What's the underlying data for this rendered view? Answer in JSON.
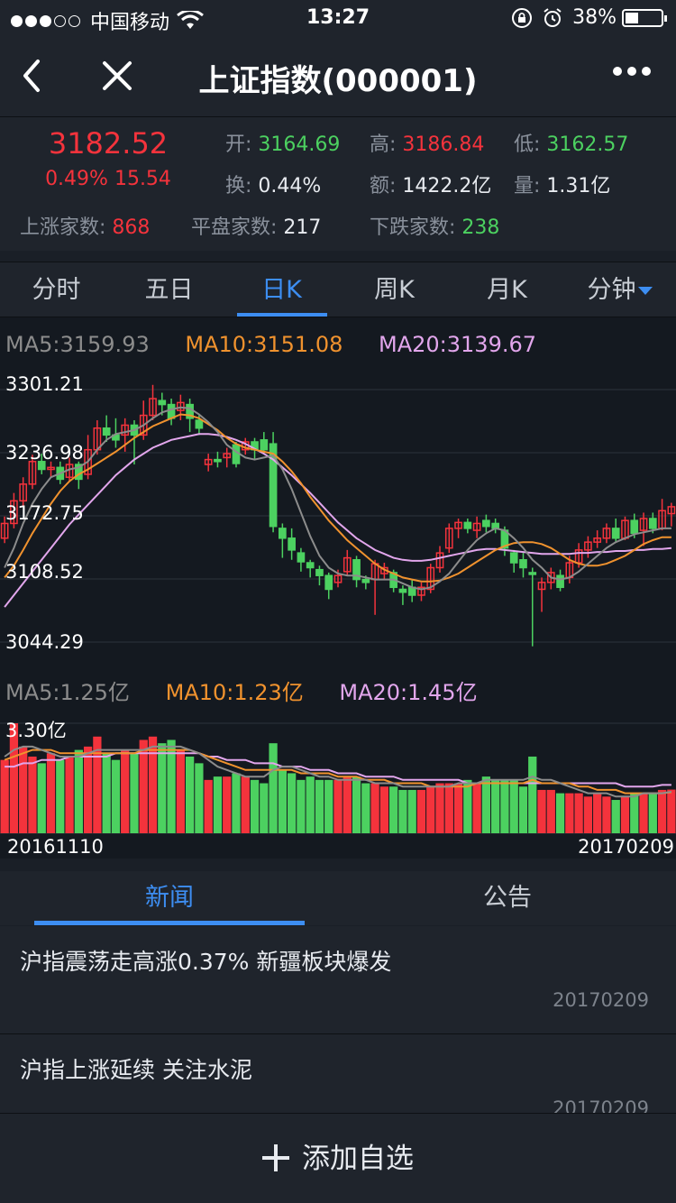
{
  "status_bar": {
    "carrier": "中国移动",
    "time": "13:27",
    "battery": "38%",
    "signal_bars": 3
  },
  "nav": {
    "title": "上证指数(000001)"
  },
  "quote": {
    "price": "3182.52",
    "change": "0.49% 15.54",
    "open_label": "开:",
    "open": "3164.69",
    "high_label": "高:",
    "high": "3186.84",
    "low_label": "低:",
    "low": "3162.57",
    "turnover_label": "换:",
    "turnover": "0.44%",
    "amount_label": "额:",
    "amount": "1422.2亿",
    "volume_label": "量:",
    "volume": "1.31亿",
    "up_label": "上涨家数:",
    "up": "868",
    "flat_label": "平盘家数:",
    "flat": "217",
    "down_label": "下跌家数:",
    "down": "238"
  },
  "tabs": [
    "分时",
    "五日",
    "日K",
    "周K",
    "月K",
    "分钟"
  ],
  "active_tab": "日K",
  "chart": {
    "ma_price": {
      "ma5": "MA5:3159.93",
      "ma10": "MA10:3151.08",
      "ma20": "MA20:3139.67"
    },
    "ma_volume": {
      "ma5": "MA5:1.25亿",
      "ma10": "MA10:1.23亿",
      "ma20": "MA20:1.45亿"
    },
    "y_labels": [
      "3301.21",
      "3236.98",
      "3172.75",
      "3108.52",
      "3044.29"
    ],
    "volume_max_label": "3.30亿",
    "start_date": "20161110",
    "end_date": "20170209",
    "colors": {
      "up": "#f4333c",
      "down": "#4cd160",
      "ma5": "#8c8c8c",
      "ma10": "#f0922e",
      "ma20": "#e2a6ec"
    }
  },
  "chart_data": {
    "type": "candlestick",
    "ylim": [
      3044.29,
      3301.21
    ],
    "volume_max": 3.3,
    "candles": [
      {
        "o": 3150,
        "c": 3165,
        "h": 3172,
        "l": 3145,
        "v": 2.2
      },
      {
        "o": 3165,
        "c": 3188,
        "h": 3196,
        "l": 3160,
        "v": 3.3
      },
      {
        "o": 3188,
        "c": 3205,
        "h": 3212,
        "l": 3182,
        "v": 2.6
      },
      {
        "o": 3205,
        "c": 3228,
        "h": 3235,
        "l": 3200,
        "v": 2.3
      },
      {
        "o": 3228,
        "c": 3220,
        "h": 3236,
        "l": 3215,
        "v": 2.1
      },
      {
        "o": 3220,
        "c": 3222,
        "h": 3228,
        "l": 3212,
        "v": 2.4
      },
      {
        "o": 3222,
        "c": 3210,
        "h": 3228,
        "l": 3205,
        "v": 2.2
      },
      {
        "o": 3212,
        "c": 3225,
        "h": 3232,
        "l": 3208,
        "v": 2.3
      },
      {
        "o": 3225,
        "c": 3210,
        "h": 3228,
        "l": 3200,
        "v": 2.5
      },
      {
        "o": 3215,
        "c": 3240,
        "h": 3255,
        "l": 3210,
        "v": 2.6
      },
      {
        "o": 3240,
        "c": 3262,
        "h": 3270,
        "l": 3235,
        "v": 2.9
      },
      {
        "o": 3262,
        "c": 3255,
        "h": 3275,
        "l": 3248,
        "v": 2.4
      },
      {
        "o": 3255,
        "c": 3250,
        "h": 3272,
        "l": 3242,
        "v": 2.2
      },
      {
        "o": 3255,
        "c": 3265,
        "h": 3272,
        "l": 3238,
        "v": 2.5
      },
      {
        "o": 3265,
        "c": 3255,
        "h": 3270,
        "l": 3225,
        "v": 2.4
      },
      {
        "o": 3255,
        "c": 3275,
        "h": 3290,
        "l": 3250,
        "v": 2.8
      },
      {
        "o": 3275,
        "c": 3292,
        "h": 3306,
        "l": 3270,
        "v": 2.9
      },
      {
        "o": 3290,
        "c": 3286,
        "h": 3298,
        "l": 3275,
        "v": 2.7
      },
      {
        "o": 3286,
        "c": 3272,
        "h": 3292,
        "l": 3265,
        "v": 2.8
      },
      {
        "o": 3280,
        "c": 3288,
        "h": 3296,
        "l": 3270,
        "v": 2.5
      },
      {
        "o": 3286,
        "c": 3272,
        "h": 3292,
        "l": 3258,
        "v": 2.3
      },
      {
        "o": 3270,
        "c": 3262,
        "h": 3275,
        "l": 3255,
        "v": 2.1
      },
      {
        "o": 3225,
        "c": 3230,
        "h": 3236,
        "l": 3218,
        "v": 1.6
      },
      {
        "o": 3230,
        "c": 3228,
        "h": 3238,
        "l": 3222,
        "v": 1.7
      },
      {
        "o": 3232,
        "c": 3236,
        "h": 3242,
        "l": 3222,
        "v": 1.7
      },
      {
        "o": 3245,
        "c": 3226,
        "h": 3248,
        "l": 3222,
        "v": 1.8
      },
      {
        "o": 3240,
        "c": 3248,
        "h": 3252,
        "l": 3235,
        "v": 1.7
      },
      {
        "o": 3248,
        "c": 3240,
        "h": 3252,
        "l": 3230,
        "v": 1.6
      },
      {
        "o": 3250,
        "c": 3240,
        "h": 3258,
        "l": 3236,
        "v": 1.5
      },
      {
        "o": 3246,
        "c": 3162,
        "h": 3258,
        "l": 3156,
        "v": 2.7
      },
      {
        "o": 3160,
        "c": 3150,
        "h": 3165,
        "l": 3130,
        "v": 1.9
      },
      {
        "o": 3150,
        "c": 3138,
        "h": 3160,
        "l": 3128,
        "v": 1.8
      },
      {
        "o": 3135,
        "c": 3126,
        "h": 3140,
        "l": 3116,
        "v": 1.6
      },
      {
        "o": 3125,
        "c": 3120,
        "h": 3128,
        "l": 3110,
        "v": 1.7
      },
      {
        "o": 3118,
        "c": 3112,
        "h": 3122,
        "l": 3102,
        "v": 1.6
      },
      {
        "o": 3112,
        "c": 3098,
        "h": 3115,
        "l": 3088,
        "v": 1.6
      },
      {
        "o": 3105,
        "c": 3112,
        "h": 3118,
        "l": 3100,
        "v": 1.6
      },
      {
        "o": 3116,
        "c": 3130,
        "h": 3138,
        "l": 3112,
        "v": 1.7
      },
      {
        "o": 3128,
        "c": 3108,
        "h": 3132,
        "l": 3100,
        "v": 1.7
      },
      {
        "o": 3108,
        "c": 3105,
        "h": 3112,
        "l": 3098,
        "v": 1.5
      },
      {
        "o": 3108,
        "c": 3124,
        "h": 3128,
        "l": 3072,
        "v": 1.5
      },
      {
        "o": 3114,
        "c": 3120,
        "h": 3125,
        "l": 3108,
        "v": 1.4
      },
      {
        "o": 3115,
        "c": 3100,
        "h": 3118,
        "l": 3095,
        "v": 1.4
      },
      {
        "o": 3098,
        "c": 3095,
        "h": 3102,
        "l": 3082,
        "v": 1.3
      },
      {
        "o": 3100,
        "c": 3092,
        "h": 3108,
        "l": 3085,
        "v": 1.3
      },
      {
        "o": 3092,
        "c": 3100,
        "h": 3105,
        "l": 3086,
        "v": 1.3
      },
      {
        "o": 3098,
        "c": 3120,
        "h": 3124,
        "l": 3094,
        "v": 1.4
      },
      {
        "o": 3120,
        "c": 3135,
        "h": 3142,
        "l": 3115,
        "v": 1.5
      },
      {
        "o": 3140,
        "c": 3160,
        "h": 3165,
        "l": 3135,
        "v": 1.5
      },
      {
        "o": 3160,
        "c": 3166,
        "h": 3170,
        "l": 3150,
        "v": 1.5
      },
      {
        "o": 3166,
        "c": 3160,
        "h": 3170,
        "l": 3155,
        "v": 1.6
      },
      {
        "o": 3158,
        "c": 3165,
        "h": 3172,
        "l": 3150,
        "v": 1.5
      },
      {
        "o": 3168,
        "c": 3162,
        "h": 3174,
        "l": 3156,
        "v": 1.7
      },
      {
        "o": 3165,
        "c": 3160,
        "h": 3170,
        "l": 3155,
        "v": 1.6
      },
      {
        "o": 3158,
        "c": 3140,
        "h": 3162,
        "l": 3132,
        "v": 1.6
      },
      {
        "o": 3135,
        "c": 3125,
        "h": 3138,
        "l": 3115,
        "v": 1.6
      },
      {
        "o": 3128,
        "c": 3120,
        "h": 3135,
        "l": 3110,
        "v": 1.4
      },
      {
        "o": 3115,
        "c": 3114,
        "h": 3120,
        "l": 3040,
        "v": 2.3
      },
      {
        "o": 3098,
        "c": 3105,
        "h": 3110,
        "l": 3075,
        "v": 1.3
      },
      {
        "o": 3105,
        "c": 3115,
        "h": 3120,
        "l": 3098,
        "v": 1.3
      },
      {
        "o": 3112,
        "c": 3100,
        "h": 3118,
        "l": 3096,
        "v": 1.2
      },
      {
        "o": 3110,
        "c": 3125,
        "h": 3132,
        "l": 3104,
        "v": 1.2
      },
      {
        "o": 3125,
        "c": 3138,
        "h": 3145,
        "l": 3120,
        "v": 1.2
      },
      {
        "o": 3138,
        "c": 3146,
        "h": 3152,
        "l": 3130,
        "v": 1.1
      },
      {
        "o": 3146,
        "c": 3150,
        "h": 3158,
        "l": 3140,
        "v": 1.2
      },
      {
        "o": 3150,
        "c": 3160,
        "h": 3165,
        "l": 3145,
        "v": 1.1
      },
      {
        "o": 3160,
        "c": 3150,
        "h": 3170,
        "l": 3146,
        "v": 1.0
      },
      {
        "o": 3150,
        "c": 3168,
        "h": 3172,
        "l": 3148,
        "v": 1.1
      },
      {
        "o": 3168,
        "c": 3155,
        "h": 3175,
        "l": 3150,
        "v": 1.2
      },
      {
        "o": 3158,
        "c": 3170,
        "h": 3176,
        "l": 3142,
        "v": 1.2
      },
      {
        "o": 3170,
        "c": 3160,
        "h": 3176,
        "l": 3155,
        "v": 1.2
      },
      {
        "o": 3160,
        "c": 3178,
        "h": 3190,
        "l": 3158,
        "v": 1.3
      },
      {
        "o": 3175,
        "c": 3182,
        "h": 3186,
        "l": 3162,
        "v": 1.31
      }
    ],
    "ma5": [
      3120,
      3140,
      3165,
      3185,
      3200,
      3212,
      3216,
      3220,
      3222,
      3228,
      3240,
      3250,
      3256,
      3258,
      3260,
      3265,
      3272,
      3278,
      3281,
      3283,
      3282,
      3276,
      3268,
      3258,
      3245,
      3238,
      3232,
      3230,
      3232,
      3234,
      3220,
      3200,
      3176,
      3152,
      3132,
      3120,
      3114,
      3112,
      3112,
      3110,
      3108,
      3108,
      3108,
      3104,
      3100,
      3098,
      3100,
      3106,
      3114,
      3126,
      3138,
      3148,
      3155,
      3160,
      3158,
      3150,
      3140,
      3128,
      3120,
      3110,
      3108,
      3110,
      3116,
      3124,
      3132,
      3140,
      3146,
      3150,
      3154,
      3156,
      3158,
      3160,
      3160
    ],
    "ma10": [
      3110,
      3122,
      3138,
      3155,
      3170,
      3185,
      3198,
      3208,
      3215,
      3220,
      3226,
      3232,
      3238,
      3245,
      3252,
      3258,
      3264,
      3268,
      3272,
      3276,
      3275,
      3272,
      3266,
      3260,
      3252,
      3246,
      3242,
      3240,
      3238,
      3236,
      3228,
      3218,
      3206,
      3192,
      3180,
      3168,
      3158,
      3148,
      3140,
      3132,
      3124,
      3118,
      3114,
      3110,
      3108,
      3106,
      3106,
      3107,
      3110,
      3114,
      3120,
      3126,
      3132,
      3138,
      3142,
      3145,
      3146,
      3146,
      3144,
      3140,
      3134,
      3128,
      3124,
      3122,
      3122,
      3124,
      3128,
      3132,
      3138,
      3144,
      3148,
      3151,
      3151
    ],
    "ma20": [
      3080,
      3092,
      3104,
      3116,
      3128,
      3140,
      3152,
      3164,
      3174,
      3184,
      3194,
      3204,
      3214,
      3222,
      3230,
      3236,
      3242,
      3246,
      3250,
      3252,
      3254,
      3256,
      3256,
      3255,
      3253,
      3250,
      3246,
      3241,
      3236,
      3230,
      3222,
      3214,
      3205,
      3196,
      3186,
      3176,
      3166,
      3158,
      3150,
      3144,
      3138,
      3134,
      3130,
      3128,
      3127,
      3127,
      3128,
      3130,
      3132,
      3134,
      3136,
      3138,
      3139,
      3139,
      3138,
      3137,
      3136,
      3135,
      3134,
      3134,
      3134,
      3134,
      3135,
      3135,
      3136,
      3136,
      3137,
      3137,
      3138,
      3138,
      3139,
      3139,
      3140
    ],
    "vol_ma5": [
      2.3,
      2.5,
      2.6,
      2.6,
      2.5,
      2.4,
      2.3,
      2.3,
      2.3,
      2.4,
      2.5,
      2.5,
      2.5,
      2.5,
      2.5,
      2.5,
      2.6,
      2.6,
      2.6,
      2.6,
      2.5,
      2.4,
      2.2,
      2.0,
      1.9,
      1.8,
      1.7,
      1.7,
      1.7,
      1.9,
      2.0,
      2.0,
      1.9,
      1.8,
      1.7,
      1.7,
      1.6,
      1.6,
      1.6,
      1.6,
      1.5,
      1.5,
      1.5,
      1.4,
      1.4,
      1.4,
      1.4,
      1.4,
      1.4,
      1.5,
      1.5,
      1.5,
      1.6,
      1.6,
      1.6,
      1.6,
      1.6,
      1.7,
      1.6,
      1.6,
      1.5,
      1.4,
      1.3,
      1.2,
      1.2,
      1.2,
      1.1,
      1.1,
      1.1,
      1.2,
      1.2,
      1.2,
      1.25
    ],
    "vol_ma10": [
      2.2,
      2.3,
      2.4,
      2.5,
      2.5,
      2.5,
      2.4,
      2.4,
      2.4,
      2.4,
      2.4,
      2.4,
      2.4,
      2.4,
      2.4,
      2.5,
      2.5,
      2.5,
      2.5,
      2.5,
      2.5,
      2.4,
      2.3,
      2.2,
      2.1,
      2.0,
      1.9,
      1.9,
      1.9,
      1.9,
      1.9,
      1.9,
      1.8,
      1.8,
      1.8,
      1.8,
      1.7,
      1.7,
      1.7,
      1.6,
      1.6,
      1.6,
      1.5,
      1.5,
      1.5,
      1.5,
      1.4,
      1.4,
      1.4,
      1.4,
      1.4,
      1.5,
      1.5,
      1.5,
      1.5,
      1.5,
      1.5,
      1.6,
      1.5,
      1.5,
      1.5,
      1.5,
      1.4,
      1.4,
      1.3,
      1.3,
      1.3,
      1.2,
      1.2,
      1.2,
      1.2,
      1.2,
      1.23
    ],
    "vol_ma20": [
      2.0,
      2.0,
      2.1,
      2.1,
      2.2,
      2.2,
      2.2,
      2.3,
      2.3,
      2.3,
      2.3,
      2.3,
      2.4,
      2.4,
      2.4,
      2.4,
      2.4,
      2.4,
      2.4,
      2.4,
      2.4,
      2.4,
      2.3,
      2.3,
      2.2,
      2.2,
      2.2,
      2.1,
      2.1,
      2.1,
      2.0,
      2.0,
      2.0,
      1.9,
      1.9,
      1.9,
      1.8,
      1.8,
      1.8,
      1.7,
      1.7,
      1.7,
      1.7,
      1.6,
      1.6,
      1.6,
      1.6,
      1.6,
      1.6,
      1.6,
      1.5,
      1.5,
      1.5,
      1.5,
      1.5,
      1.5,
      1.5,
      1.5,
      1.5,
      1.5,
      1.5,
      1.5,
      1.5,
      1.5,
      1.5,
      1.5,
      1.5,
      1.4,
      1.4,
      1.4,
      1.4,
      1.45,
      1.45
    ]
  },
  "news_tabs": [
    "新闻",
    "公告"
  ],
  "news": [
    {
      "title": "沪指震荡走高涨0.37% 新疆板块爆发",
      "date": "20170209"
    },
    {
      "title": "沪指上涨延续 关注水泥",
      "date": "20170209"
    }
  ],
  "bottom": {
    "add_label": "添加自选"
  }
}
